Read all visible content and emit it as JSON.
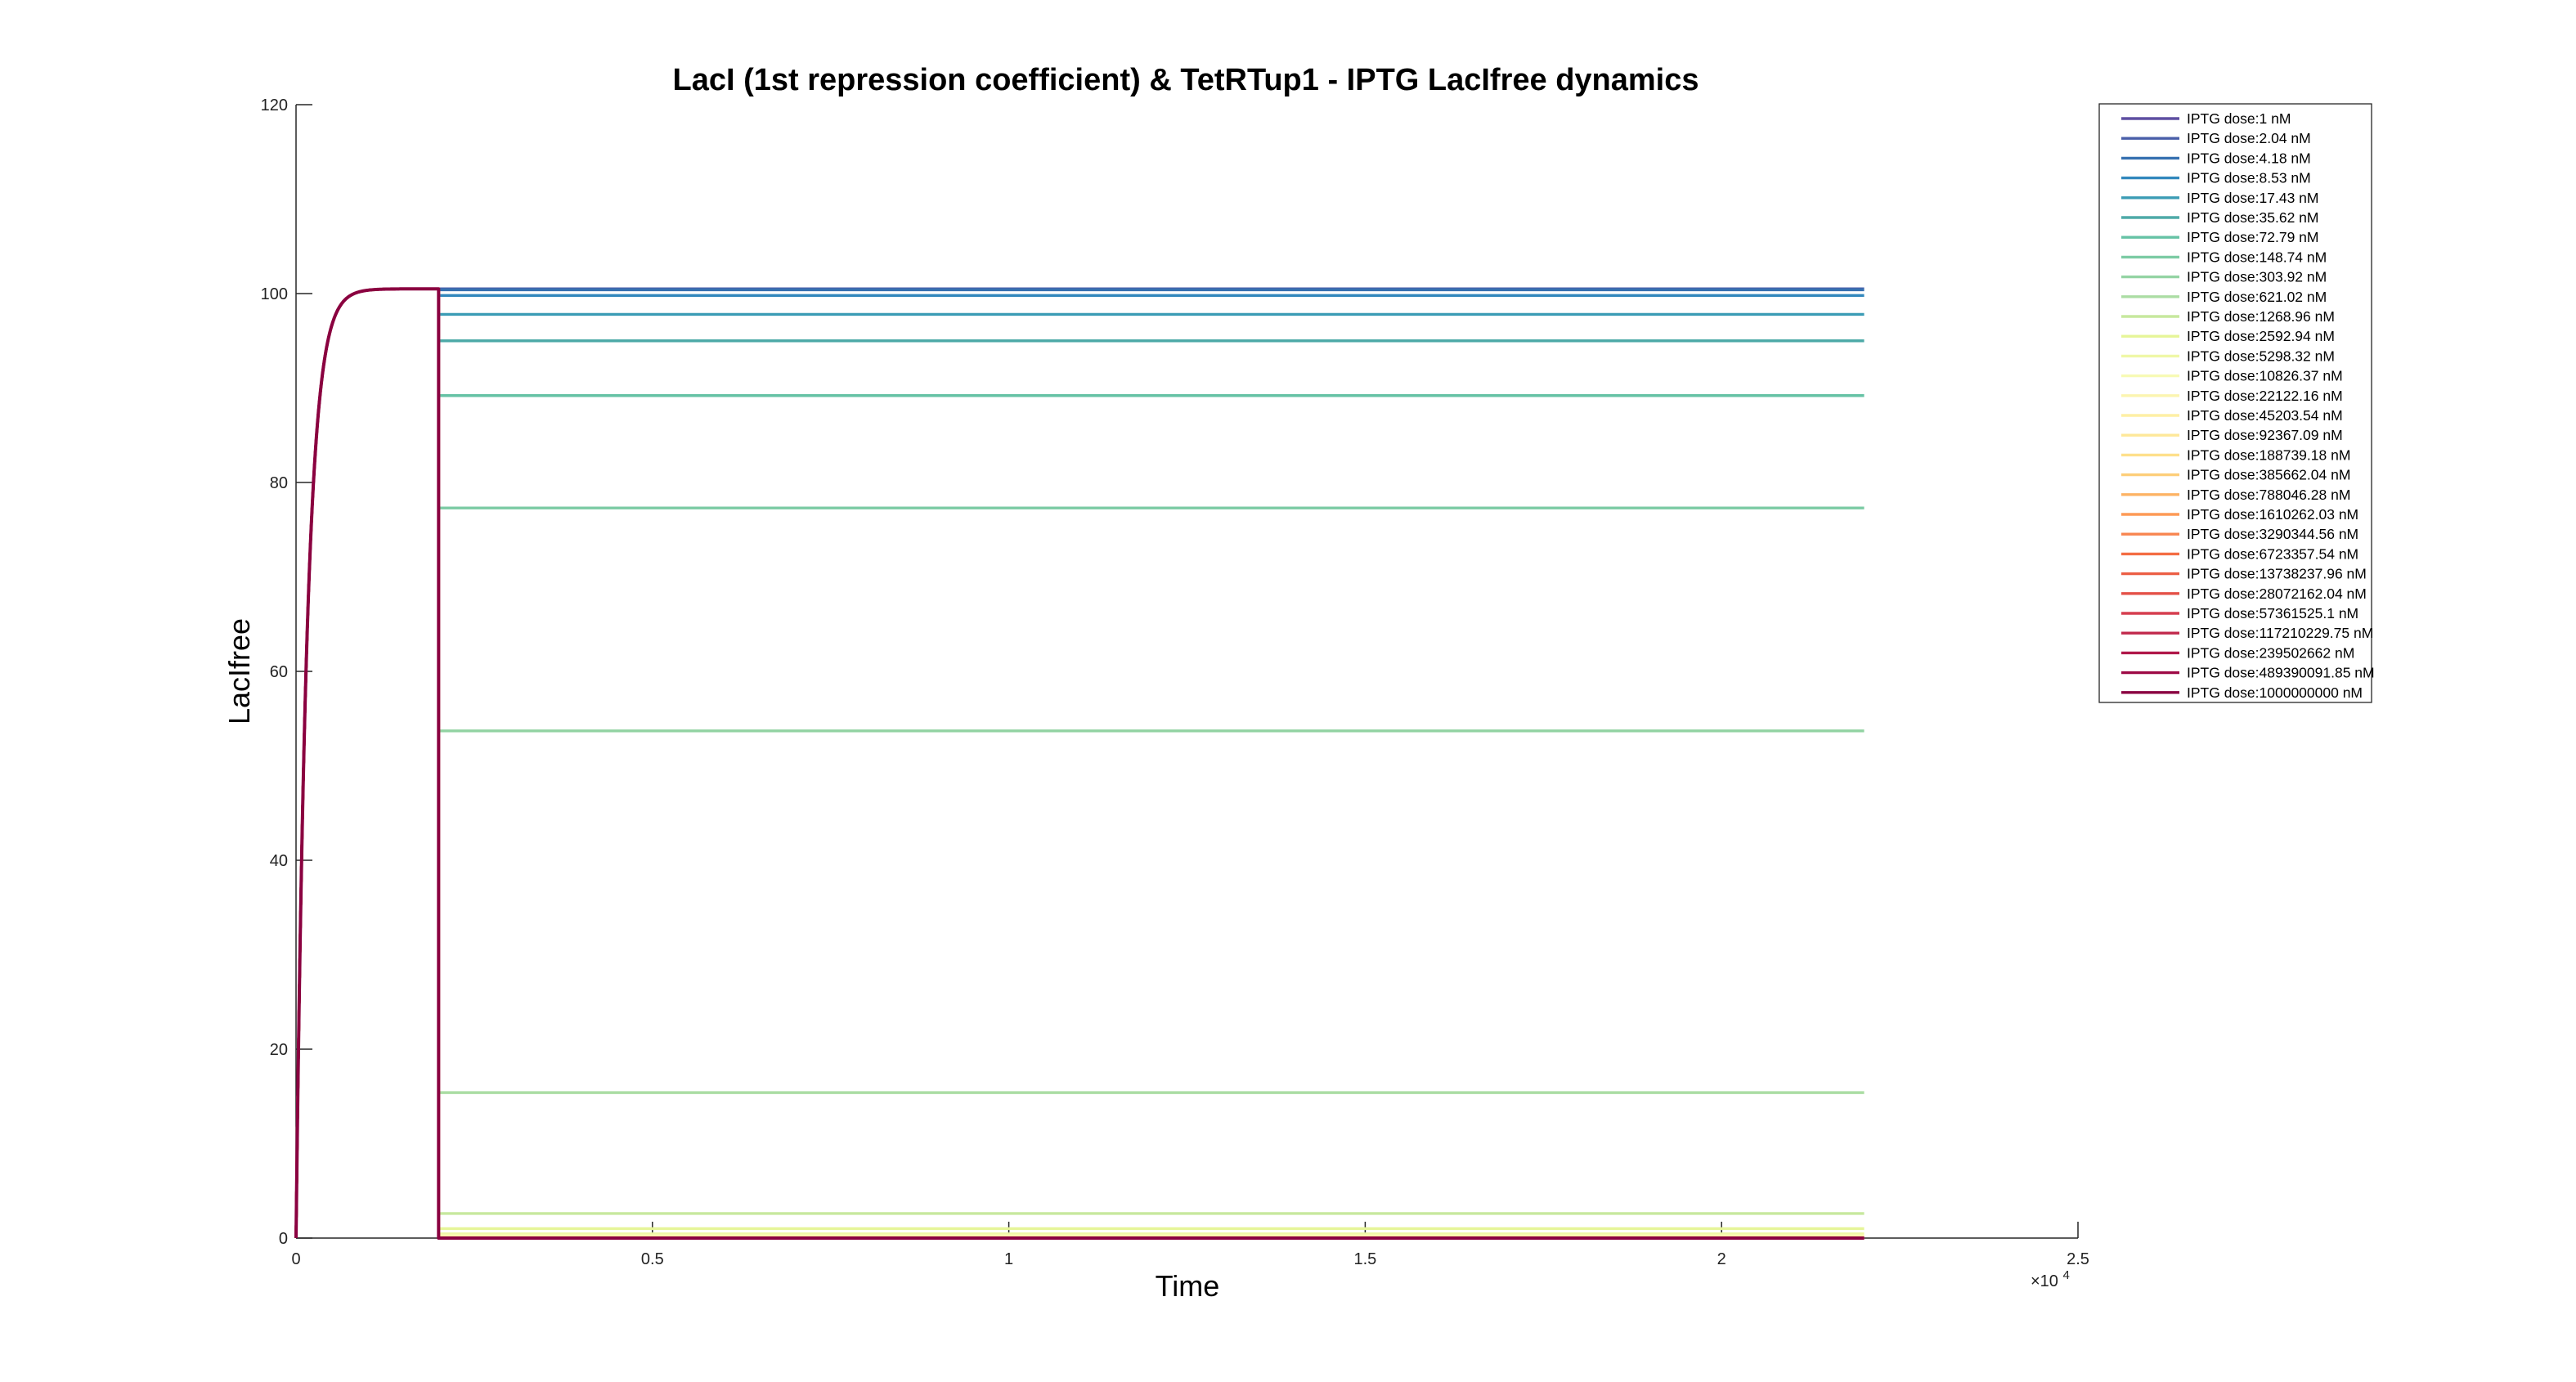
{
  "chart_data": {
    "type": "line",
    "title": "LacI (1st repression coefficient) & TetRTup1 - IPTG LacIfree dynamics",
    "xlabel": "Time",
    "ylabel": "LacIfree",
    "xlim": [
      0,
      2.5
    ],
    "ylim": [
      0,
      120
    ],
    "x_exponent_label": "×10",
    "x_exponent_power": "4",
    "x_ticks": [
      0,
      0.5,
      1,
      1.5,
      2,
      2.5
    ],
    "x_tick_labels": [
      "0",
      "0.5",
      "1",
      "1.5",
      "2",
      "2.5"
    ],
    "y_ticks": [
      0,
      20,
      40,
      60,
      80,
      100,
      120
    ],
    "y_tick_labels": [
      "0",
      "20",
      "40",
      "60",
      "80",
      "100",
      "120"
    ],
    "grid": false,
    "legend_position": "top-right outside",
    "initial_phase": {
      "t_start": 0,
      "t_switch": 0.2,
      "t_end": 2.2,
      "steady_value": 100.5,
      "rise_rate": 65
    },
    "series": [
      {
        "name": "IPTG dose:1 nM",
        "color": "#5e4fa2",
        "final": 100.5
      },
      {
        "name": "IPTG dose:2.04 nM",
        "color": "#4a5fa9",
        "final": 100.5
      },
      {
        "name": "IPTG dose:4.18 nM",
        "color": "#3670b0",
        "final": 100.4
      },
      {
        "name": "IPTG dose:8.53 nM",
        "color": "#3288bd",
        "final": 99.8
      },
      {
        "name": "IPTG dose:17.43 nM",
        "color": "#3b9cb5",
        "final": 97.8
      },
      {
        "name": "IPTG dose:35.62 nM",
        "color": "#4eaaa8",
        "final": 95
      },
      {
        "name": "IPTG dose:72.79 nM",
        "color": "#66c2a5",
        "final": 89.2
      },
      {
        "name": "IPTG dose:148.74 nM",
        "color": "#7ccba4",
        "final": 77.3
      },
      {
        "name": "IPTG dose:303.92 nM",
        "color": "#94d4a4",
        "final": 53.7
      },
      {
        "name": "IPTG dose:621.02 nM",
        "color": "#abdda4",
        "final": 15.4
      },
      {
        "name": "IPTG dose:1268.96 nM",
        "color": "#c7e89e",
        "final": 2.6
      },
      {
        "name": "IPTG dose:2592.94 nM",
        "color": "#e6f598",
        "final": 1.0
      },
      {
        "name": "IPTG dose:5298.32 nM",
        "color": "#eff7a6",
        "final": 0.45
      },
      {
        "name": "IPTG dose:10826.37 nM",
        "color": "#f7fab5",
        "final": 0.25
      },
      {
        "name": "IPTG dose:22122.16 nM",
        "color": "#fbf5b0",
        "final": 0.15
      },
      {
        "name": "IPTG dose:45203.54 nM",
        "color": "#feefa5",
        "final": 0.1
      },
      {
        "name": "IPTG dose:92367.09 nM",
        "color": "#fee89a",
        "final": 0.05
      },
      {
        "name": "IPTG dose:188739.18 nM",
        "color": "#fee08b",
        "final": 0.03
      },
      {
        "name": "IPTG dose:385662.04 nM",
        "color": "#fdce7a",
        "final": 0.02
      },
      {
        "name": "IPTG dose:788046.28 nM",
        "color": "#fdb365",
        "final": 0.01
      },
      {
        "name": "IPTG dose:1610262.03 nM",
        "color": "#fd9a56",
        "final": 0.01
      },
      {
        "name": "IPTG dose:3290344.56 nM",
        "color": "#f88550",
        "final": 0
      },
      {
        "name": "IPTG dose:6723357.54 nM",
        "color": "#f46d43",
        "final": 0
      },
      {
        "name": "IPTG dose:13738237.96 nM",
        "color": "#ec5f45",
        "final": 0
      },
      {
        "name": "IPTG dose:28072162.04 nM",
        "color": "#e45147",
        "final": 0
      },
      {
        "name": "IPTG dose:57361525.1 nM",
        "color": "#d53e4f",
        "final": 0
      },
      {
        "name": "IPTG dose:117210229.75 nM",
        "color": "#c12a4c",
        "final": 0
      },
      {
        "name": "IPTG dose:239502662 nM",
        "color": "#b0184a",
        "final": 0
      },
      {
        "name": "IPTG dose:489390091.85 nM",
        "color": "#9e0a46",
        "final": 0
      },
      {
        "name": "IPTG dose:1000000000 nM",
        "color": "#8a0140",
        "final": 0
      }
    ]
  }
}
